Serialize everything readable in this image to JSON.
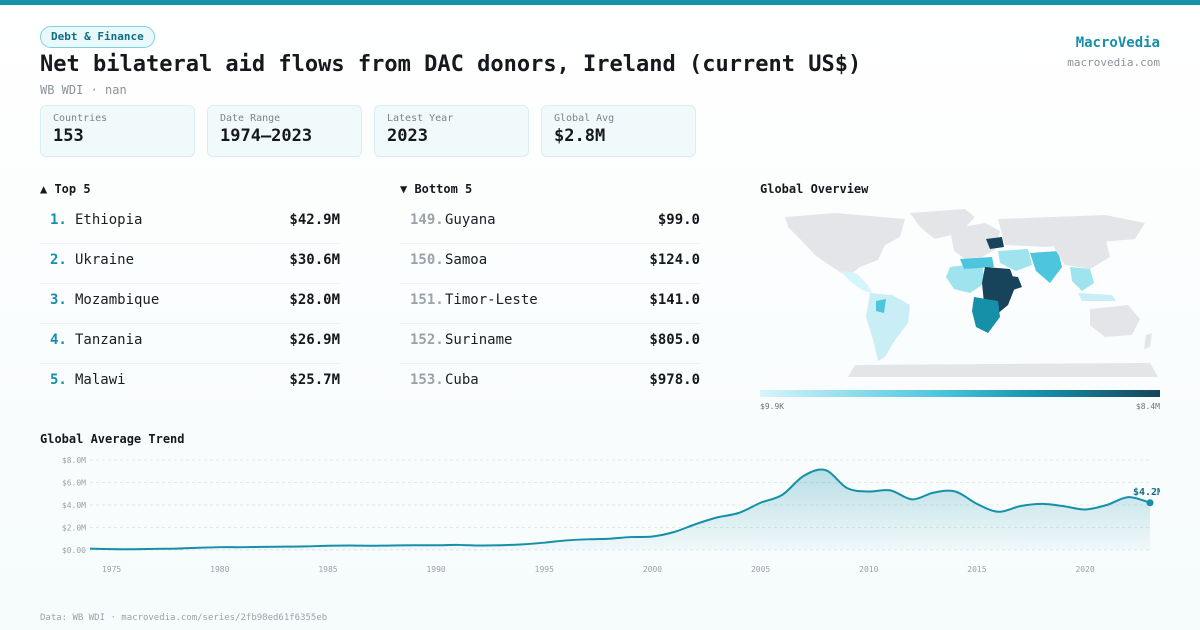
{
  "header": {
    "badge": "Debt & Finance",
    "title": "Net bilateral aid flows from DAC donors, Ireland (current US$)",
    "subtitle": "WB WDI · nan",
    "brand": "MacroVedia",
    "brand_url": "macrovedia.com"
  },
  "stats": [
    {
      "label": "Countries",
      "value": "153"
    },
    {
      "label": "Date Range",
      "value": "1974–2023"
    },
    {
      "label": "Latest Year",
      "value": "2023"
    },
    {
      "label": "Global Avg",
      "value": "$2.8M"
    }
  ],
  "top5": {
    "title": "▲ Top 5",
    "items": [
      {
        "rank": "1.",
        "name": "Ethiopia",
        "value": "$42.9M"
      },
      {
        "rank": "2.",
        "name": "Ukraine",
        "value": "$30.6M"
      },
      {
        "rank": "3.",
        "name": "Mozambique",
        "value": "$28.0M"
      },
      {
        "rank": "4.",
        "name": "Tanzania",
        "value": "$26.9M"
      },
      {
        "rank": "5.",
        "name": "Malawi",
        "value": "$25.7M"
      }
    ]
  },
  "bottom5": {
    "title": "▼ Bottom 5",
    "items": [
      {
        "rank": "149.",
        "name": "Guyana",
        "value": "$99.0"
      },
      {
        "rank": "150.",
        "name": "Samoa",
        "value": "$124.0"
      },
      {
        "rank": "151.",
        "name": "Timor-Leste",
        "value": "$141.0"
      },
      {
        "rank": "152.",
        "name": "Suriname",
        "value": "$805.0"
      },
      {
        "rank": "153.",
        "name": "Cuba",
        "value": "$978.0"
      }
    ]
  },
  "map": {
    "title": "Global Overview",
    "legend_min": "$9.9K",
    "legend_max": "$8.4M",
    "colors": {
      "no_data": "#e3e5e8",
      "low": "#d6f5fb",
      "mid": "#4cc5dd",
      "high": "#1590a8",
      "max": "#17445a"
    }
  },
  "trend": {
    "title": "Global Average Trend",
    "end_label": "$4.2M"
  },
  "chart_data": {
    "type": "area",
    "title": "Global Average Trend",
    "x": [
      1974,
      1975,
      1976,
      1977,
      1978,
      1979,
      1980,
      1981,
      1982,
      1983,
      1984,
      1985,
      1986,
      1987,
      1988,
      1989,
      1990,
      1991,
      1992,
      1993,
      1994,
      1995,
      1996,
      1997,
      1998,
      1999,
      2000,
      2001,
      2002,
      2003,
      2004,
      2005,
      2006,
      2007,
      2008,
      2009,
      2010,
      2011,
      2012,
      2013,
      2014,
      2015,
      2016,
      2017,
      2018,
      2019,
      2020,
      2021,
      2022,
      2023
    ],
    "y": [
      0.12,
      0.08,
      0.07,
      0.1,
      0.12,
      0.2,
      0.25,
      0.25,
      0.28,
      0.3,
      0.32,
      0.38,
      0.4,
      0.38,
      0.4,
      0.42,
      0.42,
      0.45,
      0.4,
      0.42,
      0.5,
      0.65,
      0.85,
      0.95,
      1.0,
      1.15,
      1.2,
      1.6,
      2.3,
      2.9,
      3.3,
      4.2,
      4.9,
      6.6,
      7.1,
      5.5,
      5.2,
      5.3,
      4.5,
      5.1,
      5.2,
      4.1,
      3.4,
      3.9,
      4.1,
      3.9,
      3.6,
      4.0,
      4.7,
      4.2
    ],
    "ylabel": "",
    "y_ticks": [
      "$0.00",
      "$2.0M",
      "$4.0M",
      "$6.0M",
      "$8.0M"
    ],
    "y_tick_values": [
      0,
      2,
      4,
      6,
      8
    ],
    "x_ticks": [
      "1975",
      "1980",
      "1985",
      "1990",
      "1995",
      "2000",
      "2005",
      "2010",
      "2015",
      "2020"
    ],
    "x_tick_values": [
      1975,
      1980,
      1985,
      1990,
      1995,
      2000,
      2005,
      2010,
      2015,
      2020
    ],
    "unit": "$M",
    "ylim": [
      0,
      8
    ],
    "xlim": [
      1974,
      2023
    ],
    "grid": true,
    "color": "#1590a8"
  },
  "footer": "Data: WB WDI · macrovedia.com/series/2fb98ed61f6355eb"
}
